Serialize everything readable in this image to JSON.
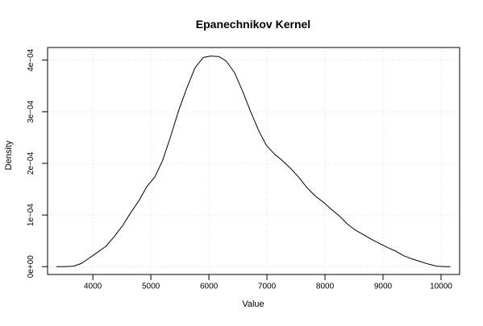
{
  "chart_data": {
    "type": "line",
    "title": "Epanechnikov Kernel",
    "xlabel": "Value",
    "ylabel": "Density",
    "xlim": [
      3220,
      10320
    ],
    "ylim": [
      -1.52e-05,
      0.0004245
    ],
    "grid": true,
    "x_ticks": [
      4000,
      5000,
      6000,
      7000,
      8000,
      9000,
      10000
    ],
    "x_tick_labels": [
      "4000",
      "5000",
      "6000",
      "7000",
      "8000",
      "9000",
      "10000"
    ],
    "y_ticks": [
      0,
      0.0001,
      0.0002,
      0.0003,
      0.0004
    ],
    "y_tick_labels": [
      "0e+00",
      "1e−04",
      "2e−04",
      "3e−04",
      "4e−04"
    ],
    "series": [
      {
        "x": [
          3370,
          3520,
          3670,
          3800,
          3930,
          4070,
          4220,
          4360,
          4510,
          4650,
          4790,
          4930,
          5070,
          5200,
          5340,
          5480,
          5620,
          5760,
          5900,
          6030,
          6170,
          6300,
          6440,
          6580,
          6720,
          6860,
          6990,
          7130,
          7270,
          7410,
          7550,
          7690,
          7830,
          7970,
          8110,
          8250,
          8380,
          8520,
          8660,
          8800,
          8940,
          9080,
          9220,
          9360,
          9500,
          9640,
          9780,
          9920,
          10060,
          10160
        ],
        "y": [
          0,
          0,
          1e-06,
          6e-06,
          1.6e-05,
          2.7e-05,
          3.9e-05,
          5.7e-05,
          7.9e-05,
          0.000104,
          0.000127,
          0.000155,
          0.000174,
          0.000205,
          0.000252,
          0.000303,
          0.000346,
          0.000385,
          0.000405,
          0.000408,
          0.000407,
          0.000398,
          0.000376,
          0.00034,
          0.0003,
          0.000263,
          0.000235,
          0.000218,
          0.000205,
          0.00019,
          0.000173,
          0.000153,
          0.000137,
          0.000125,
          0.000111,
          9.8e-05,
          8.3e-05,
          7.1e-05,
          6.2e-05,
          5.3e-05,
          4.5e-05,
          3.7e-05,
          3e-05,
          2.1e-05,
          1.5e-05,
          1e-05,
          5e-06,
          1e-06,
          0,
          0
        ]
      }
    ]
  }
}
